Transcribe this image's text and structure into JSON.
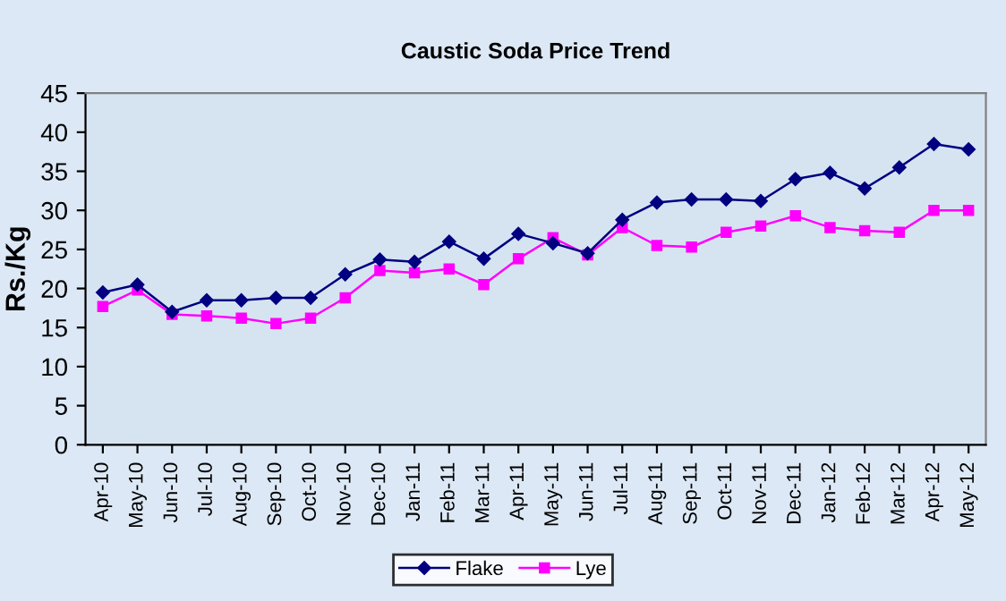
{
  "chart_data": {
    "type": "line",
    "title": "Caustic Soda Price Trend",
    "ylabel": "Rs./Kg",
    "categories": [
      "Apr-10",
      "May-10",
      "Jun-10",
      "Jul-10",
      "Aug-10",
      "Sep-10",
      "Oct-10",
      "Nov-10",
      "Dec-10",
      "Jan-11",
      "Feb-11",
      "Mar-11",
      "Apr-11",
      "May-11",
      "Jun-11",
      "Jul-11",
      "Aug-11",
      "Sep-11",
      "Oct-11",
      "Nov-11",
      "Dec-11",
      "Jan-12",
      "Feb-12",
      "Mar-12",
      "Apr-12",
      "May-12"
    ],
    "series": [
      {
        "name": "Flake",
        "color": "#000080",
        "marker": "diamond",
        "values": [
          19.5,
          20.5,
          17,
          18.5,
          18.5,
          18.8,
          18.8,
          21.8,
          23.7,
          23.4,
          26,
          23.8,
          27,
          25.8,
          24.5,
          28.8,
          31,
          31.4,
          31.4,
          31.2,
          34,
          34.8,
          32.8,
          35.5,
          38.5,
          37.8
        ]
      },
      {
        "name": "Lye",
        "color": "#ff00ff",
        "marker": "square",
        "values": [
          17.7,
          19.8,
          16.7,
          16.5,
          16.2,
          15.5,
          16.2,
          18.8,
          22.3,
          22,
          22.5,
          20.5,
          23.8,
          26.5,
          24.3,
          27.8,
          25.5,
          25.3,
          27.2,
          28,
          29.3,
          27.8,
          27.4,
          27.2,
          30,
          30
        ]
      }
    ],
    "ylim": [
      0,
      45
    ],
    "yticks": [
      0,
      5,
      10,
      15,
      20,
      25,
      30,
      35,
      40,
      45
    ],
    "grid": false,
    "legend": "bottom",
    "line_style": "solid"
  }
}
